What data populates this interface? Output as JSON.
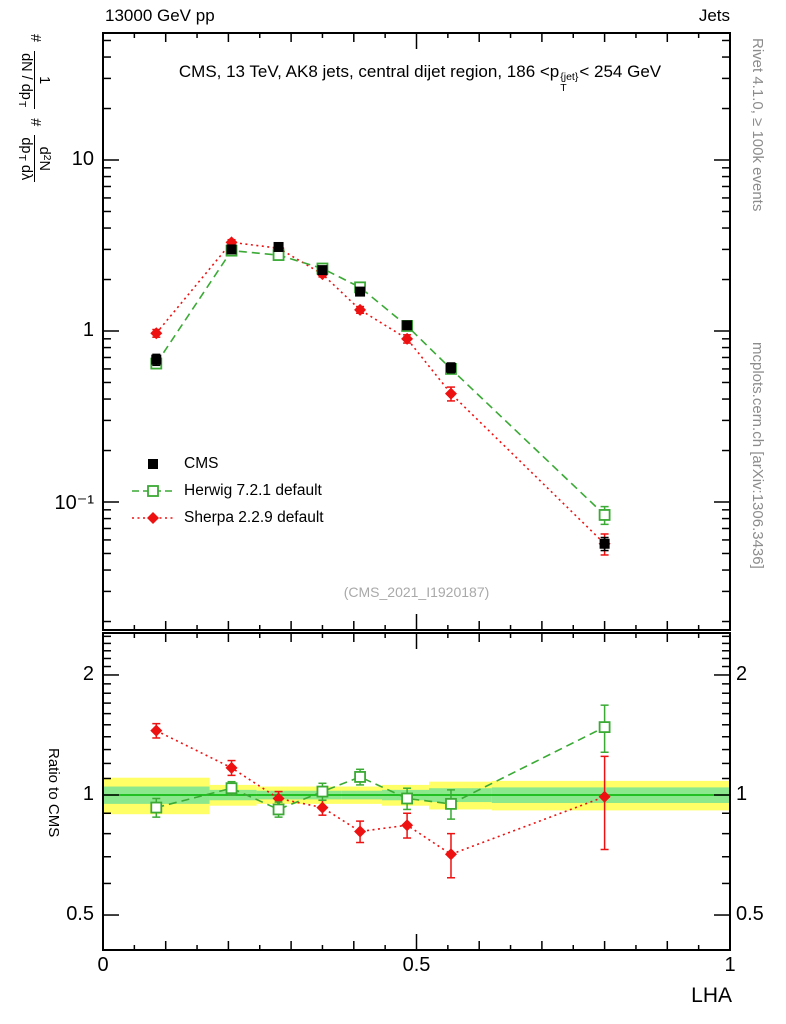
{
  "header": {
    "left_label": "13000 GeV pp",
    "right_label": "Jets"
  },
  "title": {
    "prefix": "CMS, 13 TeV, AK8 jets, central dijet region, 186 <p",
    "sup": "{jet}",
    "sub": "T",
    "suffix": "< 254 GeV"
  },
  "ylabel_main": {
    "hash1": "#",
    "frac1_num": "1",
    "frac1_den": "dN / dp",
    "frac1_den_sub": "T",
    "hash2": "#",
    "frac2_num_a": "d",
    "frac2_num_sup": "2",
    "frac2_num_b": "N",
    "frac2_den_a": "dp",
    "frac2_den_sub": "T",
    "frac2_den_b": " dλ"
  },
  "side_notes": {
    "rivet": "Rivet 4.1.0, ≥ 100k events",
    "mcplots": "mcplots.cern.ch [arXiv:1306.3436]"
  },
  "watermark": "(CMS_2021_I1920187)",
  "ratio_label": "Ratio to CMS",
  "xaxis": {
    "label": "LHA",
    "tick_labels": [
      "0",
      "0.5",
      "1"
    ],
    "tick_values": [
      0,
      0.5,
      1
    ]
  },
  "main_yaxis": {
    "tick_labels": [
      "10",
      "1",
      "10⁻¹"
    ],
    "tick_values": [
      10,
      1,
      0.1
    ]
  },
  "ratio_yaxis": {
    "tick_labels": [
      "2",
      "1",
      "0.5"
    ],
    "tick_values": [
      2,
      1,
      0.5
    ]
  },
  "colors": {
    "cms": "#000000",
    "herwig": "#3aaa35",
    "sherpa": "#ee1111",
    "band_yellow": "#ffff66",
    "band_green": "#8ce88c",
    "band_line": "#00b300",
    "side_note_gray": "#8c8c8c",
    "watermark_gray": "#a9a9a9"
  },
  "chart_data": [
    {
      "id": "main",
      "type": "scatter",
      "title": "CMS, 13 TeV, AK8 jets, central dijet region, 186 < pT(jet) < 254 GeV",
      "xlabel": "LHA",
      "ylabel": "1/(dN/dp_T) d²N/(dp_T dλ)",
      "yscale": "log",
      "xlim": [
        0,
        1
      ],
      "ylim": [
        0.018,
        55
      ],
      "x": [
        0.085,
        0.205,
        0.28,
        0.35,
        0.41,
        0.485,
        0.555,
        0.8
      ],
      "series": [
        {
          "name": "CMS",
          "marker": "square-filled",
          "color": "#000000",
          "line": "none",
          "y": [
            0.68,
            3.0,
            3.1,
            2.27,
            1.7,
            1.08,
            0.61,
            0.057
          ],
          "yerr": [
            0.05,
            0.12,
            0.12,
            0.09,
            0.08,
            0.05,
            0.04,
            0.005
          ]
        },
        {
          "name": "Herwig 7.2.1 default",
          "marker": "square-open",
          "color": "#3aaa35",
          "line": "dashed",
          "y": [
            0.645,
            2.95,
            2.78,
            2.32,
            1.8,
            1.07,
            0.6,
            0.084
          ],
          "yerr": [
            0.03,
            0.09,
            0.08,
            0.07,
            0.06,
            0.04,
            0.03,
            0.01
          ]
        },
        {
          "name": "Sherpa 2.2.9 default",
          "marker": "diamond-filled",
          "color": "#ee1111",
          "line": "dotted",
          "y": [
            0.97,
            3.3,
            3.05,
            2.15,
            1.33,
            0.9,
            0.43,
            0.057
          ],
          "yerr": [
            0.05,
            0.12,
            0.1,
            0.08,
            0.06,
            0.05,
            0.04,
            0.008
          ]
        }
      ]
    },
    {
      "id": "ratio",
      "type": "scatter",
      "ylabel": "Ratio to CMS",
      "yscale": "log",
      "xlim": [
        0,
        1
      ],
      "ylim": [
        0.41,
        2.55
      ],
      "x": [
        0.085,
        0.205,
        0.28,
        0.35,
        0.41,
        0.485,
        0.555,
        0.8
      ],
      "bands": {
        "yellow": [
          {
            "x0": 0.0,
            "x1": 0.17,
            "lo": 0.895,
            "hi": 1.105
          },
          {
            "x0": 0.17,
            "x1": 0.245,
            "lo": 0.94,
            "hi": 1.06
          },
          {
            "x0": 0.245,
            "x1": 0.315,
            "lo": 0.95,
            "hi": 1.05
          },
          {
            "x0": 0.315,
            "x1": 0.38,
            "lo": 0.95,
            "hi": 1.05
          },
          {
            "x0": 0.38,
            "x1": 0.445,
            "lo": 0.95,
            "hi": 1.05
          },
          {
            "x0": 0.445,
            "x1": 0.52,
            "lo": 0.94,
            "hi": 1.06
          },
          {
            "x0": 0.52,
            "x1": 0.62,
            "lo": 0.92,
            "hi": 1.08
          },
          {
            "x0": 0.62,
            "x1": 1.0,
            "lo": 0.915,
            "hi": 1.085
          }
        ],
        "green": [
          {
            "x0": 0.0,
            "x1": 0.17,
            "lo": 0.95,
            "hi": 1.05
          },
          {
            "x0": 0.17,
            "x1": 0.245,
            "lo": 0.97,
            "hi": 1.03
          },
          {
            "x0": 0.245,
            "x1": 0.315,
            "lo": 0.975,
            "hi": 1.025
          },
          {
            "x0": 0.315,
            "x1": 0.38,
            "lo": 0.975,
            "hi": 1.025
          },
          {
            "x0": 0.38,
            "x1": 0.445,
            "lo": 0.975,
            "hi": 1.025
          },
          {
            "x0": 0.445,
            "x1": 0.52,
            "lo": 0.97,
            "hi": 1.03
          },
          {
            "x0": 0.52,
            "x1": 0.62,
            "lo": 0.96,
            "hi": 1.04
          },
          {
            "x0": 0.62,
            "x1": 1.0,
            "lo": 0.955,
            "hi": 1.045
          }
        ]
      },
      "series": [
        {
          "name": "Herwig 7.2.1 default",
          "marker": "square-open",
          "color": "#3aaa35",
          "line": "dashed",
          "y": [
            0.93,
            1.04,
            0.92,
            1.02,
            1.11,
            0.98,
            0.95,
            1.48
          ],
          "yerr": [
            0.05,
            0.04,
            0.04,
            0.05,
            0.05,
            0.06,
            0.08,
            0.2
          ]
        },
        {
          "name": "Sherpa 2.2.9 default",
          "marker": "diamond-filled",
          "color": "#ee1111",
          "line": "dotted",
          "y": [
            1.45,
            1.17,
            0.98,
            0.93,
            0.81,
            0.84,
            0.71,
            0.99
          ],
          "yerr": [
            0.06,
            0.05,
            0.04,
            0.04,
            0.05,
            0.06,
            0.09,
            0.26
          ]
        }
      ]
    }
  ]
}
